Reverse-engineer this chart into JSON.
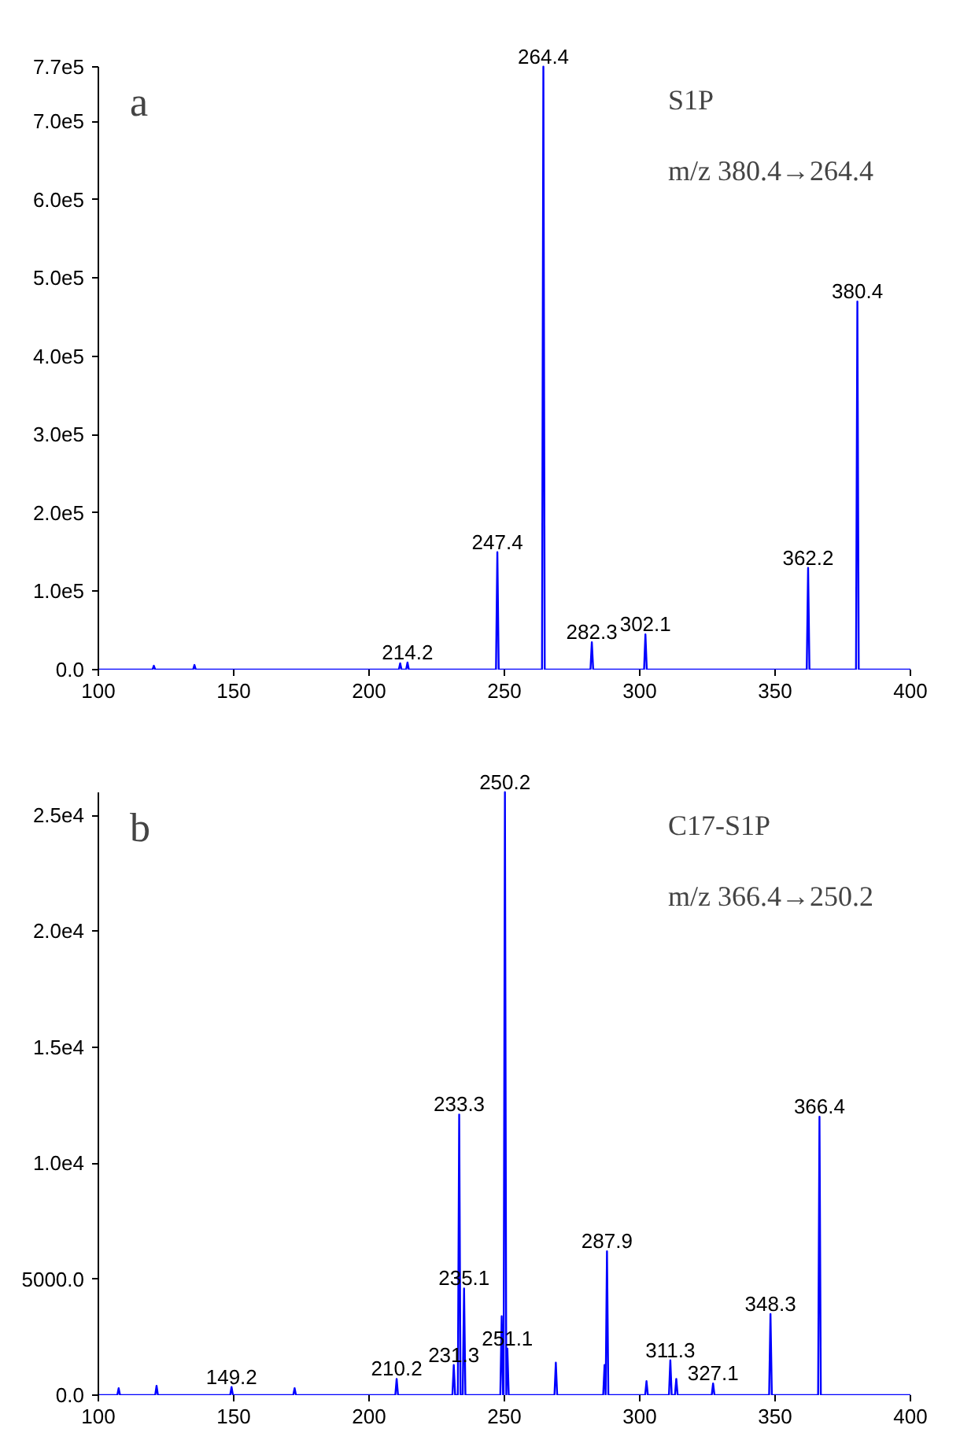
{
  "chart_data": [
    {
      "type": "line",
      "annotations": [
        "a",
        "S1P",
        "m/z 380.4→264.4",
        {
          "text": "214.2",
          "x": 214.2,
          "y": 9000
        },
        {
          "text": "247.4",
          "x": 247.4,
          "y": 150000
        },
        {
          "text": "264.4",
          "x": 264.4,
          "y": 770000
        },
        {
          "text": "282.3",
          "x": 282.3,
          "y": 35000
        },
        {
          "text": "302.1",
          "x": 302.1,
          "y": 45000
        },
        {
          "text": "362.2",
          "x": 362.2,
          "y": 130000
        },
        {
          "text": "380.4",
          "x": 380.4,
          "y": 470000
        }
      ],
      "series": [
        {
          "color": "#0000ff",
          "x": [
            100,
            120,
            120.5,
            121,
            135,
            135.5,
            136,
            150,
            211,
            211.5,
            212,
            213.7,
            214.2,
            214.7,
            246.9,
            247.4,
            247.9,
            263.9,
            264.4,
            264.9,
            281.8,
            282.3,
            282.8,
            301.6,
            302.1,
            302.6,
            361.7,
            362.2,
            362.7,
            379.9,
            380.4,
            380.9,
            400
          ],
          "values": [
            0,
            0,
            5000,
            0,
            0,
            6000,
            0,
            0,
            0,
            8000,
            0,
            0,
            9000,
            0,
            0,
            150000,
            0,
            0,
            770000,
            0,
            0,
            35000,
            0,
            0,
            45000,
            0,
            0,
            130000,
            0,
            0,
            470000,
            0,
            0
          ]
        }
      ],
      "xlim": [
        100,
        400
      ],
      "xticks": [
        100,
        150,
        200,
        250,
        300,
        350,
        400
      ],
      "ylim": [
        0,
        770000
      ],
      "yticks": [
        {
          "value": 0,
          "label": "0.0"
        },
        {
          "value": 100000,
          "label": "1.0e5"
        },
        {
          "value": 200000,
          "label": "2.0e5"
        },
        {
          "value": 300000,
          "label": "3.0e5"
        },
        {
          "value": 400000,
          "label": "4.0e5"
        },
        {
          "value": 500000,
          "label": "5.0e5"
        },
        {
          "value": 600000,
          "label": "6.0e5"
        },
        {
          "value": 700000,
          "label": "7.0e5"
        },
        {
          "value": 770000,
          "label": "7.7e5"
        }
      ],
      "grid": false,
      "marker": "none",
      "line_style": "solid"
    },
    {
      "type": "line",
      "annotations": [
        "b",
        "C17-S1P",
        "m/z 366.4→250.2",
        {
          "text": "149.2",
          "x": 149.2,
          "y": 350
        },
        {
          "text": "210.2",
          "x": 210.2,
          "y": 700
        },
        {
          "text": "231.3",
          "x": 231.3,
          "y": 1300
        },
        {
          "text": "233.3",
          "x": 233.3,
          "y": 12100
        },
        {
          "text": "235.1",
          "x": 235.1,
          "y": 4600
        },
        {
          "text": "250.2",
          "x": 250.2,
          "y": 26000
        },
        {
          "text": "251.1",
          "x": 251.1,
          "y": 2000
        },
        {
          "text": "287.9",
          "x": 287.9,
          "y": 6200
        },
        {
          "text": "311.3",
          "x": 311.3,
          "y": 1500
        },
        {
          "text": "327.1",
          "x": 327.1,
          "y": 500
        },
        {
          "text": "348.3",
          "x": 348.3,
          "y": 3500
        },
        {
          "text": "366.4",
          "x": 366.4,
          "y": 12000
        }
      ],
      "series": [
        {
          "color": "#0000ff",
          "x": [
            100,
            107,
            107.5,
            108,
            121,
            121.5,
            122,
            148.7,
            149.2,
            149.7,
            172,
            172.5,
            173,
            209.7,
            210.2,
            210.7,
            230.8,
            231.3,
            231.8,
            232.8,
            233.3,
            233.8,
            234.6,
            235.1,
            235.6,
            248.5,
            249,
            249.5,
            249.7,
            250.2,
            250.7,
            251.1,
            251.6,
            268.5,
            269,
            269.5,
            286.5,
            287,
            287.4,
            287.9,
            288.4,
            302,
            302.5,
            303,
            310.8,
            311.3,
            311.8,
            313,
            313.5,
            314,
            326.6,
            327.1,
            327.6,
            347.8,
            348.3,
            348.8,
            365.9,
            366.4,
            366.9,
            400
          ],
          "values": [
            0,
            0,
            300,
            0,
            0,
            400,
            0,
            0,
            350,
            0,
            0,
            300,
            0,
            0,
            700,
            0,
            0,
            1300,
            0,
            0,
            12100,
            0,
            0,
            4600,
            0,
            0,
            3400,
            0,
            0,
            26000,
            0,
            2000,
            0,
            0,
            1400,
            0,
            0,
            1300,
            0,
            6200,
            0,
            0,
            600,
            0,
            0,
            1500,
            0,
            0,
            700,
            0,
            0,
            500,
            0,
            0,
            3500,
            0,
            0,
            12000,
            0,
            0
          ]
        }
      ],
      "xlim": [
        100,
        400
      ],
      "xticks": [
        100,
        150,
        200,
        250,
        300,
        350,
        400
      ],
      "ylim": [
        0,
        26000
      ],
      "yticks": [
        {
          "value": 0,
          "label": "0.0"
        },
        {
          "value": 5000,
          "label": "5000.0"
        },
        {
          "value": 10000,
          "label": "1.0e4"
        },
        {
          "value": 15000,
          "label": "1.5e4"
        },
        {
          "value": 20000,
          "label": "2.0e4"
        },
        {
          "value": 25000,
          "label": "2.5e4"
        }
      ],
      "grid": false,
      "marker": "none",
      "line_style": "solid"
    }
  ]
}
